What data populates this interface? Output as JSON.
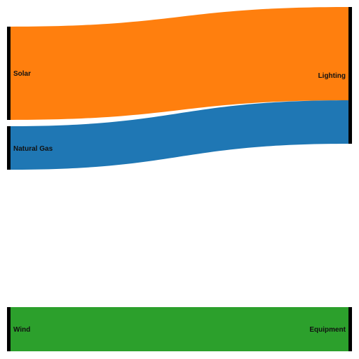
{
  "chart_data": {
    "type": "sankey",
    "nodes": [
      {
        "id": "solar",
        "label": "Solar",
        "side": "source"
      },
      {
        "id": "natural_gas",
        "label": "Natural Gas",
        "side": "source"
      },
      {
        "id": "wind",
        "label": "Wind",
        "side": "source"
      },
      {
        "id": "lighting",
        "label": "Lighting",
        "side": "target"
      },
      {
        "id": "equipment",
        "label": "Equipment",
        "side": "target"
      }
    ],
    "links": [
      {
        "source": "Solar",
        "target": "Lighting",
        "value": 40,
        "color": "#ff7f0e"
      },
      {
        "source": "Natural Gas",
        "target": "Lighting",
        "value": 19,
        "color": "#1f77b4"
      },
      {
        "source": "Wind",
        "target": "Equipment",
        "value": 19,
        "color": "#2ca02c"
      }
    ],
    "node_color": "#000000"
  }
}
